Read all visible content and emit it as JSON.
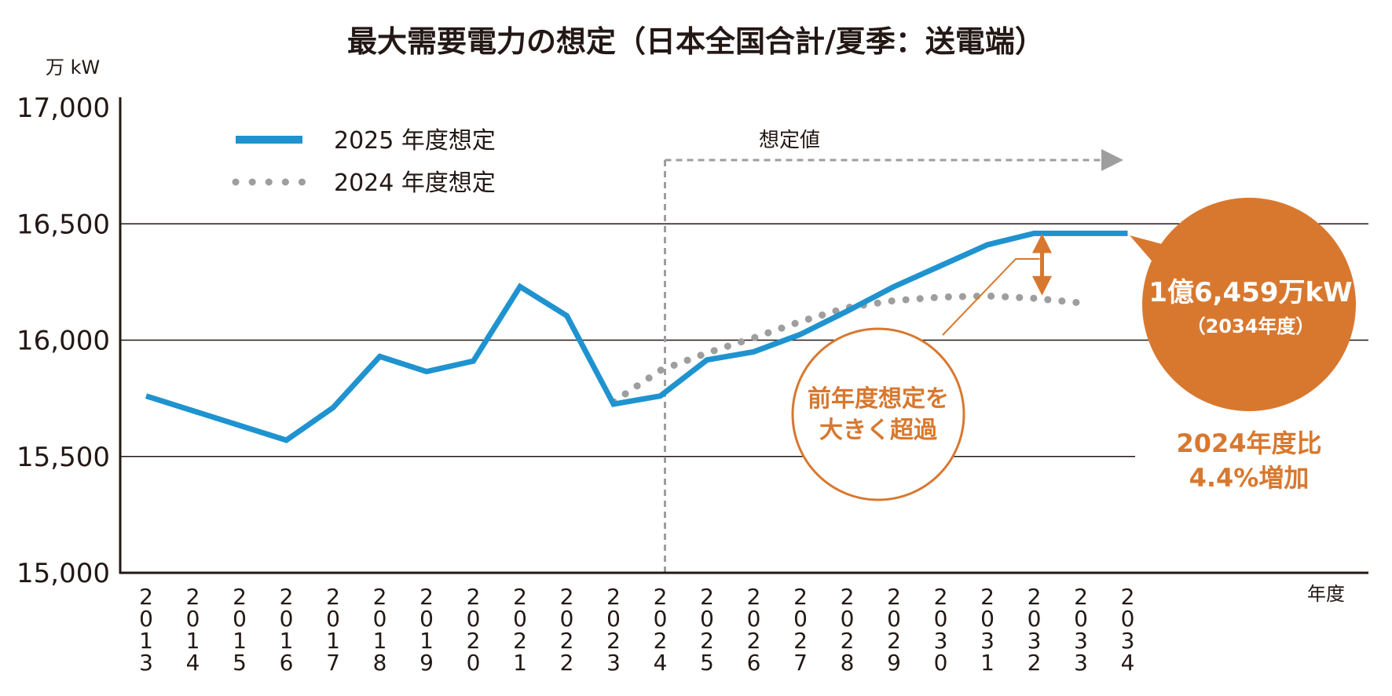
{
  "chart_data": {
    "type": "line",
    "title": "最大需要電力の想定（日本全国合計/夏季：送電端）",
    "ylabel": "万 kW",
    "xlabel": "年度",
    "ylim": [
      15000,
      17000
    ],
    "yticks": [
      15000,
      15500,
      16000,
      16500,
      17000
    ],
    "ytick_labels": [
      "15,000",
      "15,500",
      "16,000",
      "16,500",
      "17,000"
    ],
    "x": [
      2013,
      2014,
      2015,
      2016,
      2017,
      2018,
      2019,
      2020,
      2021,
      2022,
      2023,
      2024,
      2025,
      2026,
      2027,
      2028,
      2029,
      2030,
      2031,
      2032,
      2033,
      2034
    ],
    "series": [
      {
        "name": "2025 年度想定",
        "style": "solid",
        "color": "#1f93cf",
        "x": [
          2013,
          2016,
          2017,
          2018,
          2019,
          2020,
          2021,
          2022,
          2023,
          2024,
          2025,
          2026,
          2027,
          2028,
          2029,
          2030,
          2031,
          2032,
          2033,
          2034
        ],
        "values": [
          15760,
          15570,
          15710,
          15930,
          15865,
          15910,
          16230,
          16105,
          15725,
          15760,
          15915,
          15950,
          16025,
          16125,
          16230,
          16320,
          16410,
          16459,
          16459,
          16459
        ]
      },
      {
        "name": "2024 年度想定",
        "style": "dotted",
        "color": "#9e9e9e",
        "x": [
          2023,
          2024,
          2025,
          2026,
          2027,
          2028,
          2029,
          2030,
          2031,
          2032,
          2033
        ],
        "values": [
          15735,
          15870,
          15945,
          16010,
          16080,
          16140,
          16170,
          16185,
          16190,
          16180,
          16160
        ]
      }
    ],
    "forecast_start": 2024,
    "forecast_label": "想定値",
    "gridlines": [
      15500,
      16000,
      16500
    ],
    "annotations": {
      "callout_main": "1億6,459万kW",
      "callout_sub": "（2034年度）",
      "callout_color": "#d8782f",
      "circle_line1": "前年度想定を",
      "circle_line2": "大きく超過",
      "pct_line1": "2024年度比",
      "pct_line2": "4.4%増加"
    }
  }
}
